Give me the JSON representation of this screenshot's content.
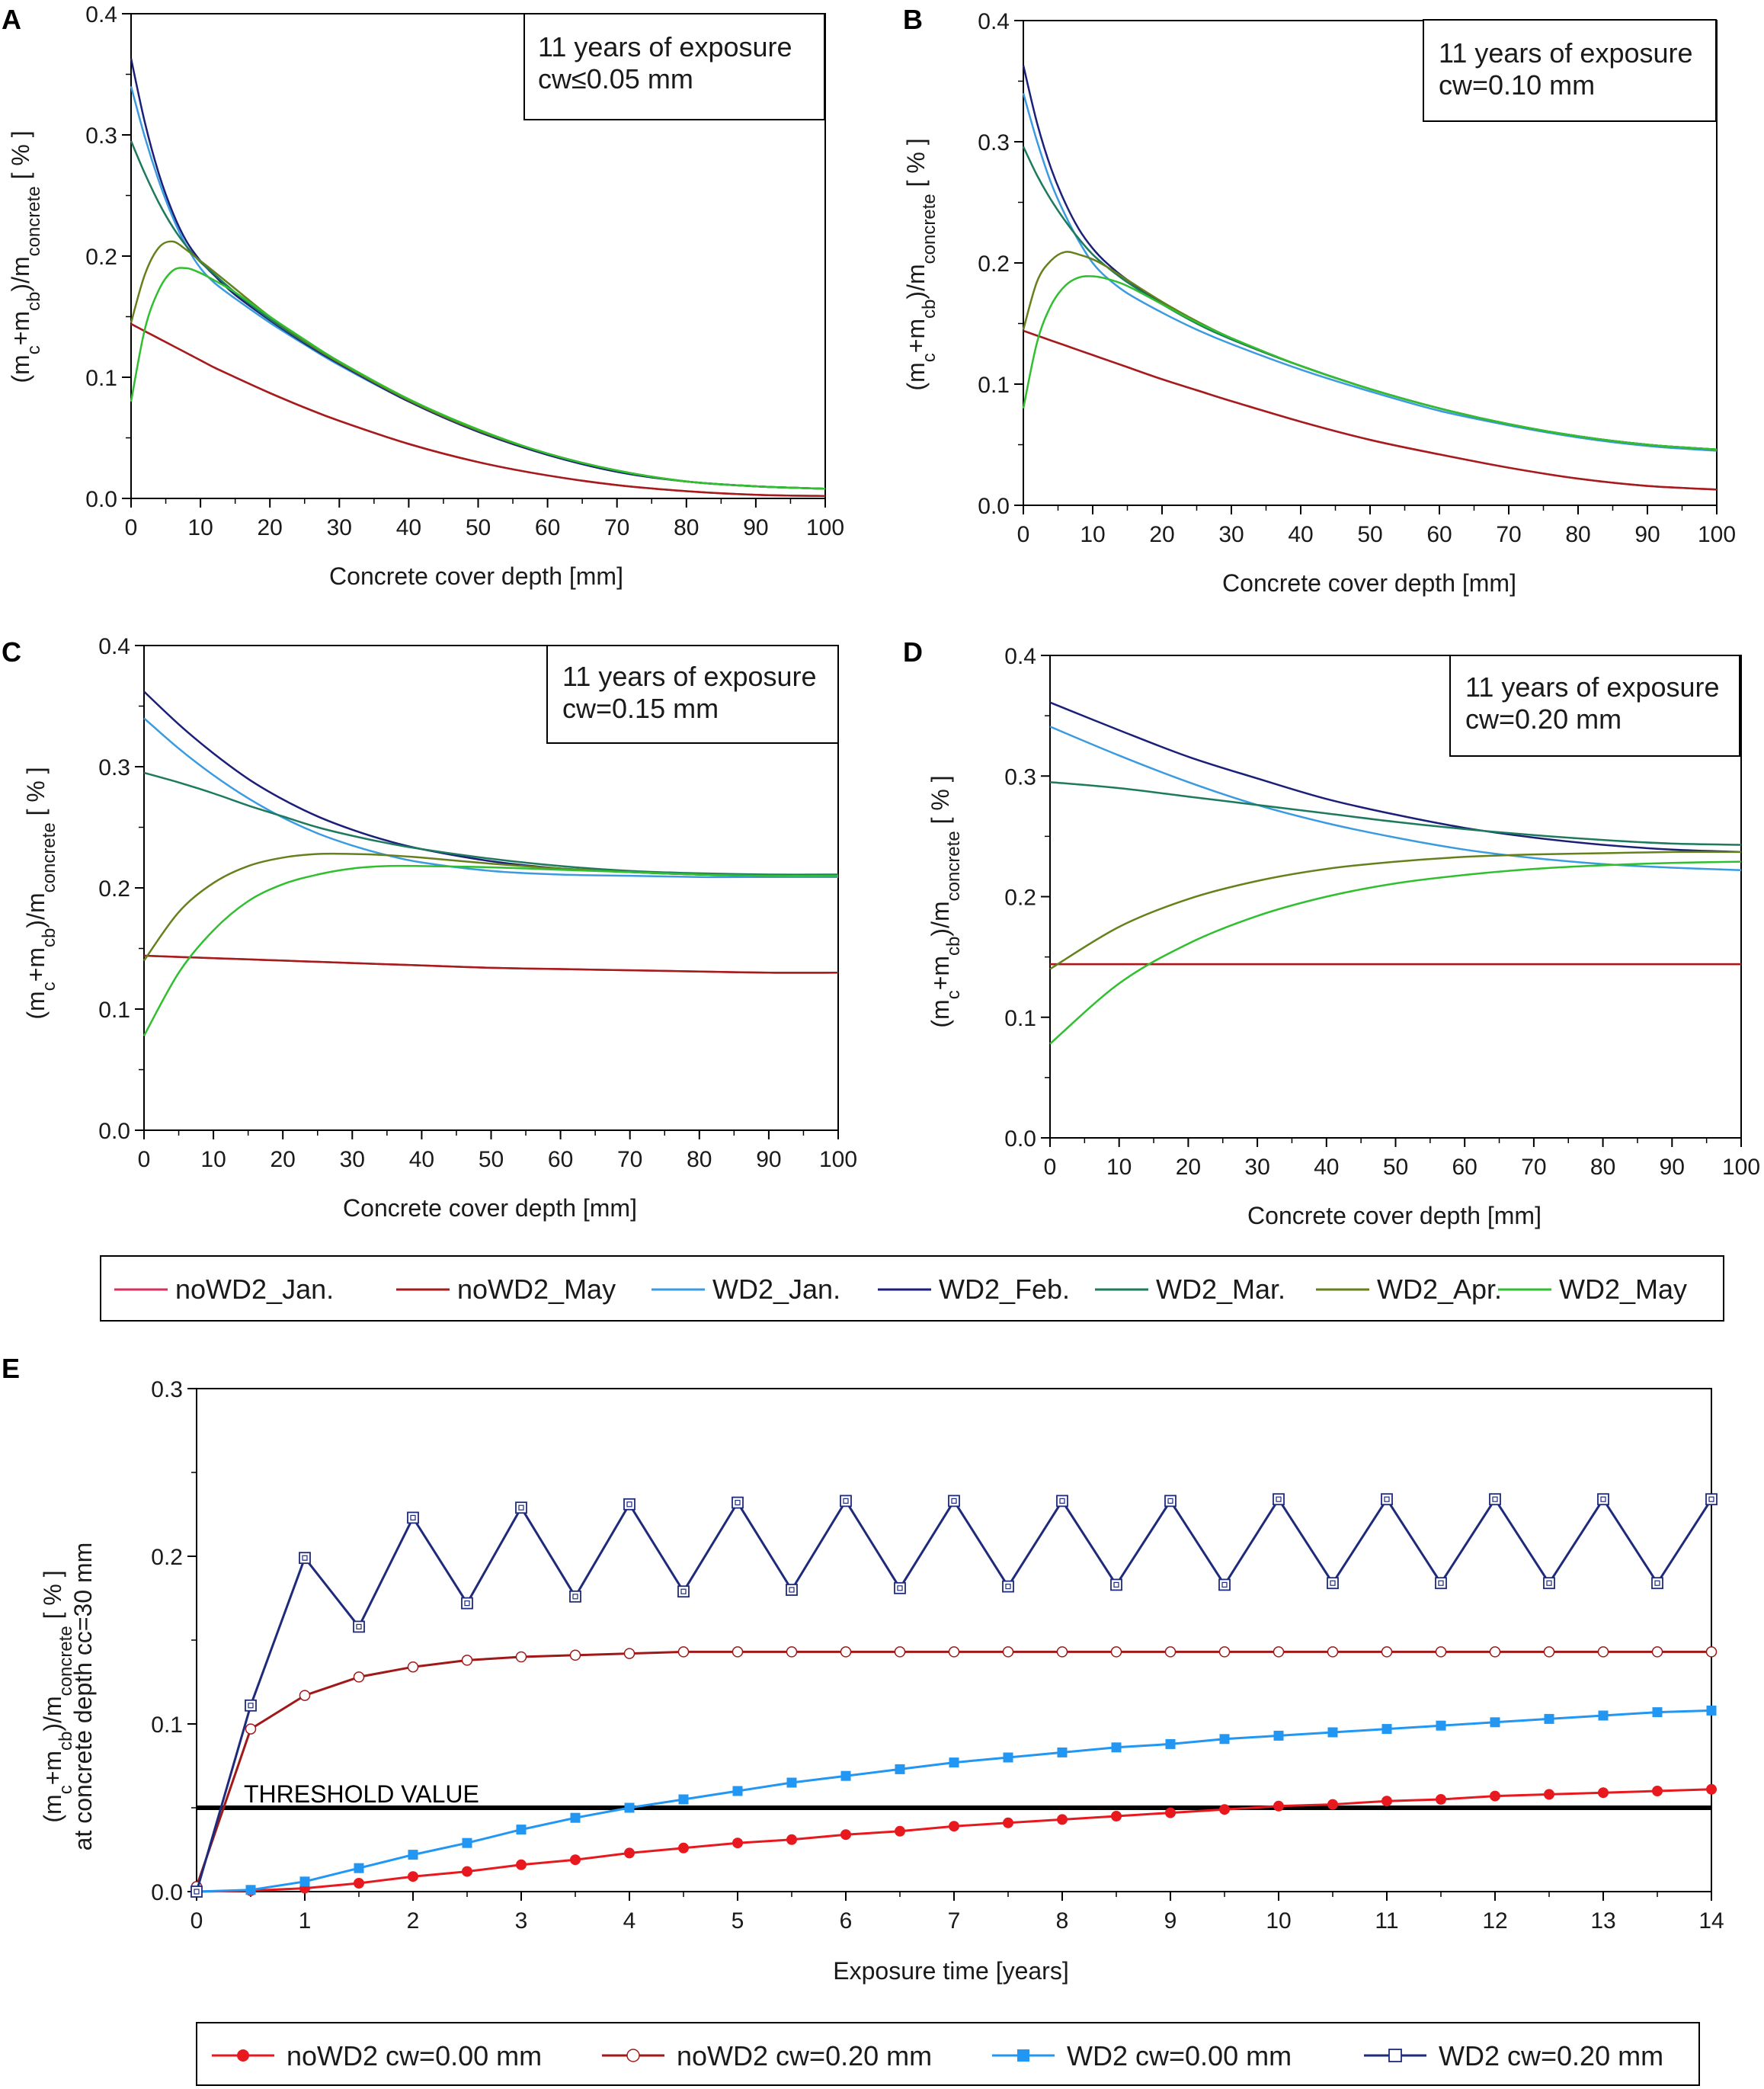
{
  "colors": {
    "noWD2_Jan": "#d6315d",
    "noWD2_May": "#a61c1c",
    "WD2_Jan": "#3a9be0",
    "WD2_Feb": "#1c1f78",
    "WD2_Mar": "#1d7a5e",
    "WD2_Apr": "#66801b",
    "WD2_May": "#2fbf2f",
    "red": "#e8191e",
    "darkred": "#a01818",
    "blue": "#2196f3",
    "navy": "#1e2a7a",
    "black": "#000000"
  },
  "legend_top": {
    "entries": [
      {
        "key": "noWD2_Jan",
        "label": "noWD2_Jan."
      },
      {
        "key": "noWD2_May",
        "label": "noWD2_May"
      },
      {
        "key": "WD2_Jan",
        "label": "WD2_Jan."
      },
      {
        "key": "WD2_Feb",
        "label": "WD2_Feb."
      },
      {
        "key": "WD2_Mar",
        "label": "WD2_Mar."
      },
      {
        "key": "WD2_Apr",
        "label": "WD2_Apr."
      },
      {
        "key": "WD2_May",
        "label": "WD2_May"
      }
    ]
  },
  "legend_bottom": {
    "entries": [
      {
        "key": "red",
        "marker": "filled-circle",
        "label": "noWD2 cw=0.00 mm"
      },
      {
        "key": "darkred",
        "marker": "open-circle",
        "label": "noWD2 cw=0.20 mm"
      },
      {
        "key": "blue",
        "marker": "filled-square",
        "label": "WD2 cw=0.00 mm"
      },
      {
        "key": "navy",
        "marker": "open-square",
        "label": "WD2 cw=0.20 mm"
      }
    ]
  },
  "chart_data": [
    {
      "panel": "A",
      "type": "line",
      "annotation": [
        "11 years of exposure",
        "cw≤0.05 mm"
      ],
      "xlabel": "Concrete cover depth [mm]",
      "ylabel": {
        "base": "(m",
        "s1": "c",
        "plus": "+m",
        "s2": "cb",
        "mid": ")/m",
        "s3": "concrete",
        "tail": " [ % ]"
      },
      "xlim": [
        0,
        100
      ],
      "ylim": [
        0,
        0.4
      ],
      "xticks": [
        "0",
        "10",
        "20",
        "30",
        "40",
        "50",
        "60",
        "70",
        "80",
        "90",
        "100"
      ],
      "yticks": [
        "0.0",
        "0.1",
        "0.2",
        "0.3",
        "0.4"
      ],
      "x": [
        0,
        2,
        4,
        6,
        8,
        10,
        12,
        15,
        20,
        25,
        30,
        40,
        50,
        60,
        70,
        80,
        90,
        100
      ],
      "series": [
        {
          "key": "noWD2_Jan",
          "values": [
            0.144,
            0.138,
            0.132,
            0.126,
            0.12,
            0.114,
            0.108,
            0.1,
            0.087,
            0.075,
            0.064,
            0.045,
            0.03,
            0.019,
            0.011,
            0.006,
            0.003,
            0.002
          ]
        },
        {
          "key": "noWD2_May",
          "values": [
            0.144,
            0.138,
            0.132,
            0.126,
            0.12,
            0.114,
            0.108,
            0.1,
            0.087,
            0.075,
            0.064,
            0.045,
            0.03,
            0.019,
            0.011,
            0.006,
            0.003,
            0.002
          ]
        },
        {
          "key": "WD2_Jan",
          "values": [
            0.34,
            0.298,
            0.262,
            0.232,
            0.208,
            0.19,
            0.178,
            0.165,
            0.145,
            0.127,
            0.11,
            0.08,
            0.055,
            0.036,
            0.022,
            0.014,
            0.01,
            0.008
          ]
        },
        {
          "key": "WD2_Feb",
          "values": [
            0.363,
            0.31,
            0.268,
            0.236,
            0.212,
            0.196,
            0.184,
            0.168,
            0.147,
            0.128,
            0.111,
            0.08,
            0.055,
            0.036,
            0.022,
            0.014,
            0.01,
            0.008
          ]
        },
        {
          "key": "WD2_Mar",
          "values": [
            0.295,
            0.268,
            0.244,
            0.224,
            0.208,
            0.195,
            0.185,
            0.17,
            0.148,
            0.129,
            0.112,
            0.081,
            0.056,
            0.037,
            0.023,
            0.014,
            0.01,
            0.008
          ]
        },
        {
          "key": "WD2_Apr",
          "values": [
            0.145,
            0.185,
            0.207,
            0.212,
            0.205,
            0.196,
            0.187,
            0.173,
            0.15,
            0.13,
            0.112,
            0.081,
            0.056,
            0.037,
            0.023,
            0.014,
            0.01,
            0.008
          ]
        },
        {
          "key": "WD2_May",
          "values": [
            0.08,
            0.14,
            0.172,
            0.188,
            0.19,
            0.186,
            0.18,
            0.17,
            0.15,
            0.131,
            0.113,
            0.082,
            0.057,
            0.037,
            0.023,
            0.014,
            0.01,
            0.008
          ]
        }
      ]
    },
    {
      "panel": "B",
      "type": "line",
      "annotation": [
        "11 years of exposure",
        "cw=0.10 mm"
      ],
      "xlabel": "Concrete cover depth [mm]",
      "ylabel": {
        "base": "(m",
        "s1": "c",
        "plus": "+m",
        "s2": "cb",
        "mid": ")/m",
        "s3": "concrete",
        "tail": " [ % ]"
      },
      "xlim": [
        0,
        100
      ],
      "ylim": [
        0,
        0.4
      ],
      "xticks": [
        "0",
        "10",
        "20",
        "30",
        "40",
        "50",
        "60",
        "70",
        "80",
        "90",
        "100"
      ],
      "yticks": [
        "0.0",
        "0.1",
        "0.2",
        "0.3",
        "0.4"
      ],
      "x": [
        0,
        2,
        4,
        6,
        8,
        10,
        12,
        15,
        20,
        25,
        30,
        40,
        50,
        60,
        70,
        80,
        90,
        100
      ],
      "series": [
        {
          "key": "noWD2_Jan",
          "values": [
            0.144,
            0.14,
            0.136,
            0.132,
            0.128,
            0.124,
            0.12,
            0.114,
            0.104,
            0.095,
            0.086,
            0.069,
            0.054,
            0.042,
            0.031,
            0.022,
            0.016,
            0.013
          ]
        },
        {
          "key": "noWD2_May",
          "values": [
            0.144,
            0.14,
            0.136,
            0.132,
            0.128,
            0.124,
            0.12,
            0.114,
            0.104,
            0.095,
            0.086,
            0.069,
            0.054,
            0.042,
            0.031,
            0.022,
            0.016,
            0.013
          ]
        },
        {
          "key": "WD2_Jan",
          "values": [
            0.34,
            0.3,
            0.266,
            0.24,
            0.218,
            0.2,
            0.188,
            0.175,
            0.159,
            0.145,
            0.133,
            0.112,
            0.094,
            0.078,
            0.066,
            0.056,
            0.049,
            0.045
          ]
        },
        {
          "key": "WD2_Feb",
          "values": [
            0.363,
            0.315,
            0.278,
            0.25,
            0.228,
            0.212,
            0.2,
            0.186,
            0.167,
            0.151,
            0.137,
            0.115,
            0.096,
            0.08,
            0.067,
            0.057,
            0.05,
            0.046
          ]
        },
        {
          "key": "WD2_Mar",
          "values": [
            0.296,
            0.272,
            0.252,
            0.235,
            0.22,
            0.207,
            0.197,
            0.184,
            0.166,
            0.15,
            0.137,
            0.115,
            0.096,
            0.08,
            0.067,
            0.057,
            0.05,
            0.046
          ]
        },
        {
          "key": "WD2_Apr",
          "values": [
            0.145,
            0.185,
            0.202,
            0.209,
            0.207,
            0.203,
            0.197,
            0.186,
            0.168,
            0.152,
            0.138,
            0.115,
            0.096,
            0.08,
            0.067,
            0.057,
            0.05,
            0.046
          ]
        },
        {
          "key": "WD2_May",
          "values": [
            0.08,
            0.135,
            0.165,
            0.181,
            0.188,
            0.189,
            0.187,
            0.181,
            0.166,
            0.151,
            0.138,
            0.115,
            0.096,
            0.08,
            0.067,
            0.057,
            0.05,
            0.046
          ]
        }
      ]
    },
    {
      "panel": "C",
      "type": "line",
      "annotation": [
        "11 years of exposure",
        "cw=0.15 mm"
      ],
      "xlabel": "Concrete cover depth [mm]",
      "ylabel": {
        "base": "(m",
        "s1": "c",
        "plus": "+m",
        "s2": "cb",
        "mid": ")/m",
        "s3": "concrete",
        "tail": " [ % ]"
      },
      "xlim": [
        0,
        100
      ],
      "ylim": [
        0,
        0.4
      ],
      "xticks": [
        "0",
        "10",
        "20",
        "30",
        "40",
        "50",
        "60",
        "70",
        "80",
        "90",
        "100"
      ],
      "yticks": [
        "0.0",
        "0.1",
        "0.2",
        "0.3",
        "0.4"
      ],
      "x": [
        0,
        5,
        10,
        15,
        20,
        25,
        30,
        35,
        40,
        50,
        60,
        70,
        80,
        90,
        100
      ],
      "series": [
        {
          "key": "noWD2_Jan",
          "values": [
            0.144,
            0.143,
            0.142,
            0.141,
            0.14,
            0.139,
            0.138,
            0.137,
            0.136,
            0.134,
            0.133,
            0.132,
            0.131,
            0.13,
            0.13
          ]
        },
        {
          "key": "noWD2_May",
          "values": [
            0.144,
            0.143,
            0.142,
            0.141,
            0.14,
            0.139,
            0.138,
            0.137,
            0.136,
            0.134,
            0.133,
            0.132,
            0.131,
            0.13,
            0.13
          ]
        },
        {
          "key": "WD2_Jan",
          "values": [
            0.34,
            0.315,
            0.293,
            0.274,
            0.258,
            0.245,
            0.235,
            0.227,
            0.221,
            0.214,
            0.211,
            0.21,
            0.209,
            0.209,
            0.209
          ]
        },
        {
          "key": "WD2_Feb",
          "values": [
            0.362,
            0.335,
            0.311,
            0.29,
            0.273,
            0.259,
            0.248,
            0.239,
            0.232,
            0.222,
            0.216,
            0.213,
            0.211,
            0.21,
            0.21
          ]
        },
        {
          "key": "WD2_Mar",
          "values": [
            0.295,
            0.287,
            0.278,
            0.268,
            0.259,
            0.25,
            0.243,
            0.237,
            0.232,
            0.224,
            0.218,
            0.214,
            0.212,
            0.211,
            0.211
          ]
        },
        {
          "key": "WD2_Apr",
          "values": [
            0.14,
            0.18,
            0.204,
            0.218,
            0.225,
            0.228,
            0.228,
            0.227,
            0.225,
            0.22,
            0.216,
            0.213,
            0.211,
            0.21,
            0.21
          ]
        },
        {
          "key": "WD2_May",
          "values": [
            0.078,
            0.13,
            0.165,
            0.189,
            0.203,
            0.211,
            0.216,
            0.218,
            0.218,
            0.217,
            0.215,
            0.213,
            0.211,
            0.21,
            0.21
          ]
        }
      ]
    },
    {
      "panel": "D",
      "type": "line",
      "annotation": [
        "11 years of exposure",
        "cw=0.20 mm"
      ],
      "xlabel": "Concrete cover depth [mm]",
      "ylabel": {
        "base": "(m",
        "s1": "c",
        "plus": "+m",
        "s2": "cb",
        "mid": ")/m",
        "s3": "concrete",
        "tail": " [ % ]"
      },
      "xlim": [
        0,
        100
      ],
      "ylim": [
        0,
        0.4
      ],
      "xticks": [
        "0",
        "10",
        "20",
        "30",
        "40",
        "50",
        "60",
        "70",
        "80",
        "90",
        "100"
      ],
      "yticks": [
        "0.0",
        "0.1",
        "0.2",
        "0.3",
        "0.4"
      ],
      "x": [
        0,
        10,
        20,
        30,
        40,
        50,
        60,
        70,
        80,
        90,
        100
      ],
      "series": [
        {
          "key": "noWD2_Jan",
          "values": [
            0.144,
            0.144,
            0.144,
            0.144,
            0.144,
            0.144,
            0.144,
            0.144,
            0.144,
            0.144,
            0.144
          ]
        },
        {
          "key": "noWD2_May",
          "values": [
            0.144,
            0.144,
            0.144,
            0.144,
            0.144,
            0.144,
            0.144,
            0.144,
            0.144,
            0.144,
            0.144
          ]
        },
        {
          "key": "WD2_Jan",
          "values": [
            0.341,
            0.317,
            0.295,
            0.276,
            0.261,
            0.249,
            0.239,
            0.232,
            0.227,
            0.224,
            0.222
          ]
        },
        {
          "key": "WD2_Feb",
          "values": [
            0.361,
            0.338,
            0.316,
            0.298,
            0.281,
            0.268,
            0.257,
            0.249,
            0.243,
            0.239,
            0.237
          ]
        },
        {
          "key": "WD2_Mar",
          "values": [
            0.295,
            0.29,
            0.283,
            0.276,
            0.269,
            0.262,
            0.256,
            0.251,
            0.247,
            0.244,
            0.243
          ]
        },
        {
          "key": "WD2_Apr",
          "values": [
            0.14,
            0.175,
            0.198,
            0.213,
            0.223,
            0.229,
            0.233,
            0.235,
            0.236,
            0.237,
            0.237
          ]
        },
        {
          "key": "WD2_May",
          "values": [
            0.078,
            0.128,
            0.161,
            0.184,
            0.2,
            0.211,
            0.218,
            0.223,
            0.226,
            0.228,
            0.229
          ]
        }
      ]
    },
    {
      "panel": "E",
      "type": "line",
      "xlabel": "Exposure time [years]",
      "ylabel": {
        "base": "(m",
        "s1": "c",
        "plus": "+m",
        "s2": "cb",
        "mid": ")/m",
        "s3": "concrete",
        "tail": " [ % ]",
        "line2": "at concrete depth cc=30 mm"
      },
      "xlim": [
        0,
        14
      ],
      "ylim": [
        0,
        0.3
      ],
      "xticks": [
        "0",
        "1",
        "2",
        "3",
        "4",
        "5",
        "6",
        "7",
        "8",
        "9",
        "10",
        "11",
        "12",
        "13",
        "14"
      ],
      "yticks": [
        "0.0",
        "0.1",
        "0.2",
        "0.3"
      ],
      "threshold": {
        "value": 0.05,
        "label": "THRESHOLD VALUE"
      },
      "x": [
        0,
        0.5,
        1,
        1.5,
        2,
        2.5,
        3,
        3.5,
        4,
        4.5,
        5,
        5.5,
        6,
        6.5,
        7,
        7.5,
        8,
        8.5,
        9,
        9.5,
        10,
        10.5,
        11,
        11.5,
        12,
        12.5,
        13,
        13.5,
        14
      ],
      "series": [
        {
          "key": "red",
          "marker": "filled-circle",
          "values": [
            0.0,
            0.0005,
            0.002,
            0.005,
            0.009,
            0.012,
            0.016,
            0.019,
            0.023,
            0.026,
            0.029,
            0.031,
            0.034,
            0.036,
            0.039,
            0.041,
            0.043,
            0.045,
            0.047,
            0.049,
            0.051,
            0.052,
            0.054,
            0.055,
            0.057,
            0.058,
            0.059,
            0.06,
            0.061
          ]
        },
        {
          "key": "darkred",
          "marker": "open-circle",
          "values": [
            0.003,
            0.097,
            0.117,
            0.128,
            0.134,
            0.138,
            0.14,
            0.141,
            0.142,
            0.143,
            0.143,
            0.143,
            0.143,
            0.143,
            0.143,
            0.143,
            0.143,
            0.143,
            0.143,
            0.143,
            0.143,
            0.143,
            0.143,
            0.143,
            0.143,
            0.143,
            0.143,
            0.143,
            0.143
          ]
        },
        {
          "key": "blue",
          "marker": "filled-square",
          "values": [
            0.0,
            0.001,
            0.006,
            0.014,
            0.022,
            0.029,
            0.037,
            0.044,
            0.05,
            0.055,
            0.06,
            0.065,
            0.069,
            0.073,
            0.077,
            0.08,
            0.083,
            0.086,
            0.088,
            0.091,
            0.093,
            0.095,
            0.097,
            0.099,
            0.101,
            0.103,
            0.105,
            0.107,
            0.108
          ]
        },
        {
          "key": "navy",
          "marker": "open-square",
          "values": [
            0.0,
            0.111,
            0.199,
            0.158,
            0.223,
            0.172,
            0.229,
            0.176,
            0.231,
            0.179,
            0.232,
            0.18,
            0.233,
            0.181,
            0.233,
            0.182,
            0.233,
            0.183,
            0.233,
            0.183,
            0.234,
            0.184,
            0.234,
            0.184,
            0.234,
            0.184,
            0.234,
            0.184,
            0.234
          ]
        }
      ]
    }
  ]
}
